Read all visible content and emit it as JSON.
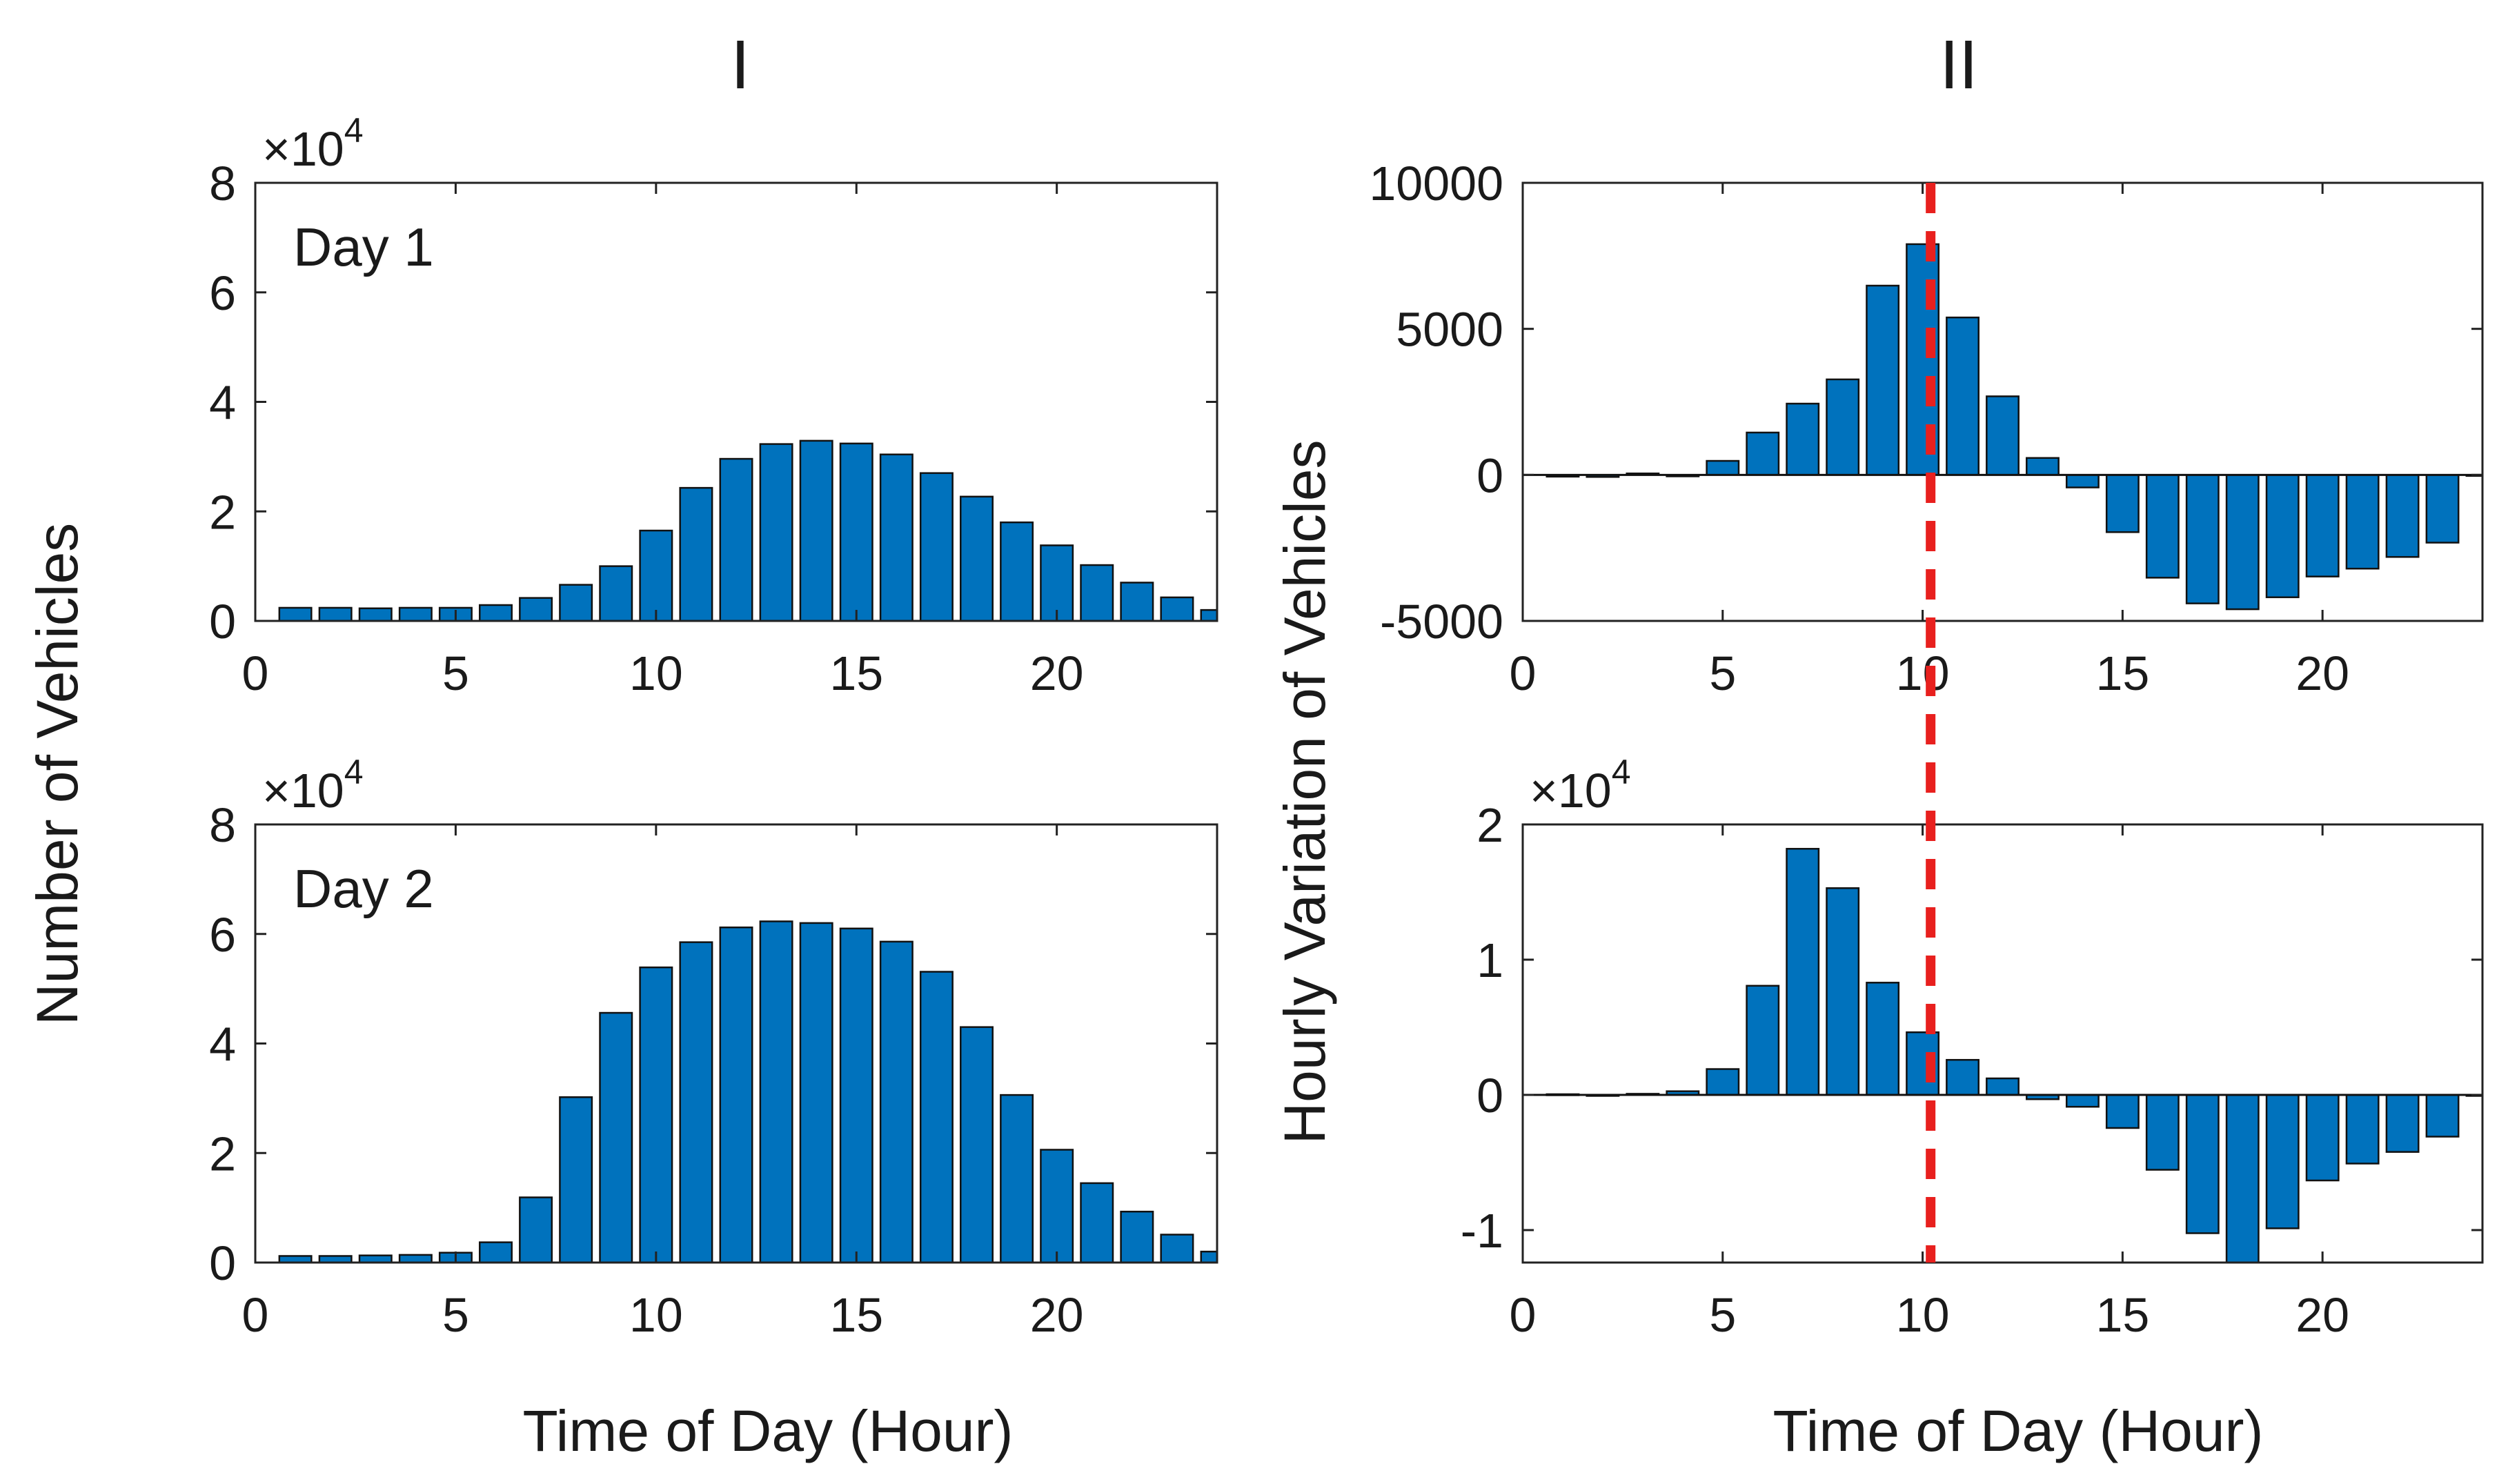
{
  "figure": {
    "column_titles": [
      "I",
      "II"
    ],
    "ylabel_left": "Number of Vehicles",
    "ylabel_right": "Hourly Variation of Vehicles",
    "xlabel": "Time of Day (Hour)",
    "bar_color": "#0072BD",
    "marker_color": "#E8201E",
    "marker_hour": 10.2
  },
  "chart_data": [
    {
      "id": "day1",
      "type": "bar",
      "annotation": "Day 1",
      "exponent_label": "×10",
      "exponent_power": "4",
      "x": [
        1,
        2,
        3,
        4,
        5,
        6,
        7,
        8,
        9,
        10,
        11,
        12,
        13,
        14,
        15,
        16,
        17,
        18,
        19,
        20,
        21,
        22,
        23,
        24
      ],
      "values": [
        2400,
        2400,
        2300,
        2400,
        2400,
        2900,
        4200,
        6600,
        10000,
        16500,
        24300,
        29600,
        32300,
        32900,
        32400,
        30400,
        27000,
        22700,
        18000,
        13800,
        10200,
        7000,
        4300,
        2000
      ],
      "xlim": [
        0,
        24
      ],
      "ylim": [
        0,
        80000
      ],
      "xticks": [
        0,
        5,
        10,
        15,
        20
      ],
      "yticks": [
        0,
        20000,
        40000,
        60000,
        80000
      ],
      "ytick_labels": [
        "0",
        "2",
        "4",
        "6",
        "8"
      ],
      "marker": false
    },
    {
      "id": "day2",
      "type": "bar",
      "annotation": "Day 2",
      "exponent_label": "×10",
      "exponent_power": "4",
      "x": [
        1,
        2,
        3,
        4,
        5,
        6,
        7,
        8,
        9,
        10,
        11,
        12,
        13,
        14,
        15,
        16,
        17,
        18,
        19,
        20,
        21,
        22,
        23,
        24
      ],
      "values": [
        1200,
        1200,
        1300,
        1400,
        1800,
        3700,
        11900,
        30200,
        45600,
        53900,
        58500,
        61200,
        62300,
        62000,
        61000,
        58600,
        53100,
        43000,
        30600,
        20600,
        14500,
        9300,
        5100,
        2000
      ],
      "xlim": [
        0,
        24
      ],
      "ylim": [
        0,
        80000
      ],
      "xticks": [
        0,
        5,
        10,
        15,
        20
      ],
      "yticks": [
        0,
        20000,
        40000,
        60000,
        80000
      ],
      "ytick_labels": [
        "0",
        "2",
        "4",
        "6",
        "8"
      ],
      "marker": false
    },
    {
      "id": "var1",
      "type": "bar",
      "annotation": "",
      "exponent_label": "",
      "exponent_power": "",
      "x": [
        1,
        2,
        3,
        4,
        5,
        6,
        7,
        8,
        9,
        10,
        11,
        12,
        13,
        14,
        15,
        16,
        17,
        18,
        19,
        20,
        21,
        22,
        23,
        24
      ],
      "values": [
        -60,
        -70,
        50,
        -50,
        480,
        1450,
        2440,
        3270,
        6480,
        7900,
        5390,
        2690,
        580,
        -430,
        -1960,
        -3520,
        -4400,
        -4600,
        -4190,
        -3480,
        -3210,
        -2810,
        -2320,
        0
      ],
      "xlim": [
        0,
        24
      ],
      "ylim": [
        -5000,
        10000
      ],
      "xticks": [
        0,
        5,
        10,
        15,
        20
      ],
      "yticks": [
        -5000,
        0,
        5000,
        10000
      ],
      "ytick_labels": [
        "-5000",
        "0",
        "5000",
        "10000"
      ],
      "marker": true
    },
    {
      "id": "var2",
      "type": "bar",
      "annotation": "",
      "exponent_label": "×10",
      "exponent_power": "4",
      "x": [
        1,
        2,
        3,
        4,
        5,
        6,
        7,
        8,
        9,
        10,
        11,
        12,
        13,
        14,
        15,
        16,
        17,
        18,
        19,
        20,
        21,
        22,
        23,
        24
      ],
      "values": [
        50,
        0,
        80,
        270,
        1910,
        8070,
        18200,
        15290,
        8300,
        4630,
        2590,
        1220,
        -320,
        -880,
        -2450,
        -5540,
        -10230,
        -12400,
        -9870,
        -6330,
        -5080,
        -4220,
        -3090,
        0
      ],
      "xlim": [
        0,
        24
      ],
      "ylim": [
        -12400,
        20000
      ],
      "xticks": [
        0,
        5,
        10,
        15,
        20
      ],
      "yticks": [
        -10000,
        0,
        10000,
        20000
      ],
      "ytick_labels": [
        "-1",
        "0",
        "1",
        "2"
      ],
      "marker": true
    }
  ]
}
